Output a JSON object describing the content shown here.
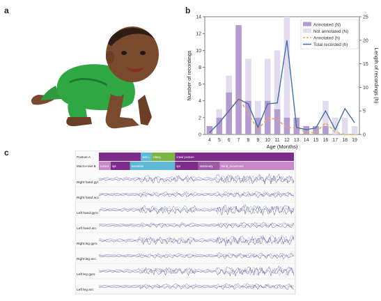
{
  "panels": {
    "a": "a",
    "b": "b",
    "c": "c"
  },
  "chart_data": {
    "type": "bar",
    "categories": [
      "4",
      "5",
      "6",
      "7",
      "8",
      "9",
      "10",
      "11",
      "12",
      "13",
      "14",
      "15",
      "16",
      "17",
      "18",
      "19"
    ],
    "xlabel": "Age (Months)",
    "ylabel": "Number of recordings",
    "y2label": "Length of recordings (h)",
    "ylim": [
      0,
      14
    ],
    "y2lim": [
      0,
      25
    ],
    "yticks": [
      0,
      2,
      4,
      6,
      8,
      10,
      12,
      14
    ],
    "y2ticks": [
      0,
      5,
      10,
      15,
      20,
      25
    ],
    "legend_position": "top-right",
    "series": [
      {
        "name": "Annotated (N)",
        "kind": "bar",
        "axis": "left",
        "values": [
          1,
          2,
          5,
          13,
          4,
          2,
          4,
          3,
          2,
          2,
          1,
          1,
          1,
          0,
          0,
          0
        ]
      },
      {
        "name": "Not annotated (N)",
        "kind": "bar",
        "axis": "left",
        "values": [
          0,
          1,
          2,
          0,
          5,
          2,
          5,
          7,
          12,
          0,
          0,
          0,
          3,
          2,
          2,
          1
        ]
      },
      {
        "name": "Annotated (h)",
        "kind": "line",
        "axis": "right",
        "values": [
          0.4,
          2.5,
          5,
          7.8,
          4.5,
          1,
          3.5,
          3.2,
          1.4,
          1.5,
          0.4,
          0.4,
          2.5,
          0.5,
          0,
          0
        ]
      },
      {
        "name": "Total recorded (h)",
        "kind": "line",
        "axis": "right",
        "values": [
          0.4,
          2.5,
          5,
          7.5,
          6.5,
          1.5,
          6.5,
          6.7,
          20,
          1.5,
          1,
          1.4,
          5,
          1,
          5.5,
          2.5
        ]
      }
    ],
    "colors": {
      "annotated_bar": "#b49bd0",
      "not_annotated_bar": "#e3dcef",
      "annotated_line": "#f0a848",
      "total_line": "#3f6fa8"
    }
  },
  "signal_panel": {
    "annotation_rows": [
      {
        "label": "Posture A",
        "segments": [
          {
            "text": "",
            "start": 0.0,
            "end": 0.215,
            "color": "#7e2c8c"
          },
          {
            "text": "side L",
            "start": 0.215,
            "end": 0.27,
            "color": "#5db9d6"
          },
          {
            "text": "sitting",
            "start": 0.27,
            "end": 0.39,
            "color": "#7bb543"
          },
          {
            "text": "crawl posture",
            "start": 0.39,
            "end": 1.0,
            "color": "#7e2c8c"
          }
        ]
      },
      {
        "label": "Macro-rove B",
        "segments": [
          {
            "text": "turnint",
            "start": 0.0,
            "end": 0.06,
            "color": "#c789c7"
          },
          {
            "text": "spt",
            "start": 0.06,
            "end": 0.16,
            "color": "#7e2c8c"
          },
          {
            "text": "transition",
            "start": 0.16,
            "end": 0.39,
            "color": "#5db9d6"
          },
          {
            "text": "spt",
            "start": 0.39,
            "end": 0.51,
            "color": "#7e2c8c"
          },
          {
            "text": "stationary",
            "start": 0.51,
            "end": 0.62,
            "color": "#a05aa8"
          },
          {
            "text": "hand_movement",
            "start": 0.62,
            "end": 1.0,
            "color": "#c789c7"
          }
        ]
      }
    ],
    "signal_rows": [
      "Right hand gyr",
      "Right hand acc",
      "Left hand gyro",
      "Left hand acc",
      "Right leg gyro",
      "Right leg acc",
      "Left leg gyro",
      "Left leg acc"
    ]
  }
}
